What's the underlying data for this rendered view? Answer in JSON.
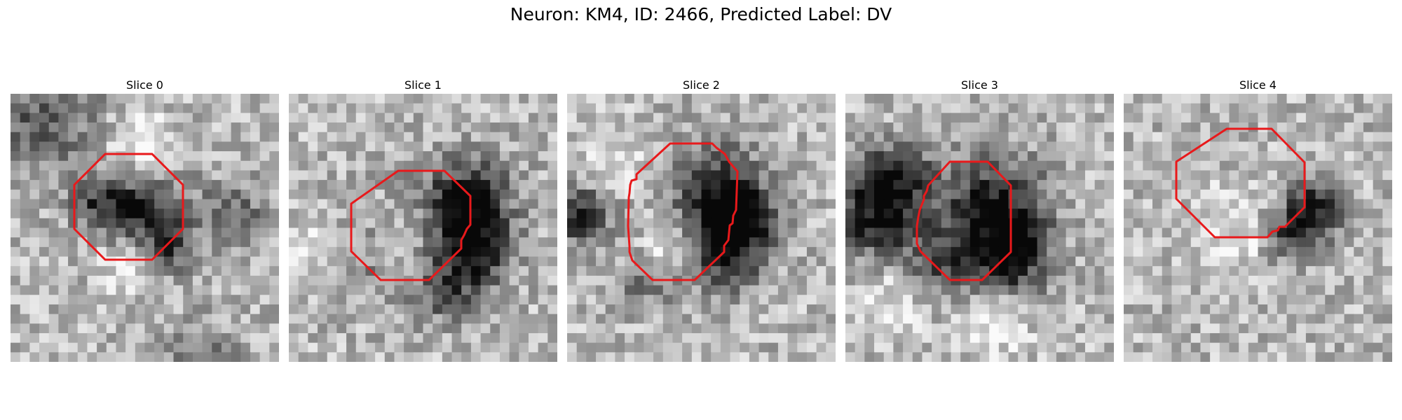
{
  "figure": {
    "title": "Neuron: KM4, ID: 2466, Predicted Label: DV",
    "contour_color": "#e8191b"
  },
  "slices": [
    {
      "label": "Slice 0"
    },
    {
      "label": "Slice 1"
    },
    {
      "label": "Slice 2"
    },
    {
      "label": "Slice 3"
    },
    {
      "label": "Slice 4"
    }
  ]
}
